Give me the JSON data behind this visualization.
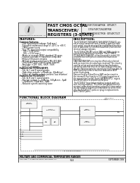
{
  "title_left": "FAST CMOS OCTAL\nTRANSCEIVER/\nREGISTERS (3-STATE)",
  "part_numbers_right": "IDT54/74FCT2652ATPGB · IDT54FCT\n          IDT54/74FCT2652BTPGB\nIDT54/74FCT2652CTPGB · IDT54FCT1CT",
  "logo_text": "Integrated Device Technology, Inc.",
  "features_title": "FEATURES:",
  "description_title": "DESCRIPTION:",
  "functional_title": "FUNCTIONAL BLOCK DIAGRAM",
  "footer_left": "MILITARY AND COMMERCIAL TEMPERATURE RANGES",
  "footer_center": "9-24",
  "footer_right": "SEPTEMBER 1999",
  "footer_company": "Copyright © Integrated Device Technology, Inc.",
  "bg_color": "#ffffff",
  "features_lines": [
    [
      "bold",
      "Common features:"
    ],
    [
      "normal",
      "  – Low input/output leakage (1µA max.)"
    ],
    [
      "normal",
      "  – Extended commercial range of -40°C to +85°C"
    ],
    [
      "normal",
      "  – CMOS power levels"
    ],
    [
      "normal",
      "  – True TTL input and output compatibility"
    ],
    [
      "normal",
      "    · VIH = 2.0V (min.)"
    ],
    [
      "normal",
      "    · VOL = 0.5V (max.)"
    ],
    [
      "normal",
      "  – Meets or exceeds JEDEC standard 18 specs"
    ],
    [
      "normal",
      "  – Product available in Industrial I-temp and"
    ],
    [
      "normal",
      "    Military Enhanced versions"
    ],
    [
      "normal",
      "  – Military product compliant to MIL-STD-883,"
    ],
    [
      "normal",
      "    Class B and JEDEC tested (upon request)"
    ],
    [
      "normal",
      "  – Available in DIP, SOIC, SSOP, TSOP,"
    ],
    [
      "normal",
      "    and LCC packages"
    ],
    [
      "bold",
      "Features for FCT2652AT/BT:"
    ],
    [
      "normal",
      "  – Std. A, C and D speed grades"
    ],
    [
      "normal",
      "  – High-drive outputs (−64mA typ., 64mA typ.)"
    ],
    [
      "normal",
      "  – Power off disable outputs prevent 'bus insertion'"
    ],
    [
      "bold",
      "Features for FCT2652CT:"
    ],
    [
      "normal",
      "  – Std. A, B and C speed grades"
    ],
    [
      "normal",
      "  – Resistor outputs  (−2mA typ., 100µA min., 5µA)"
    ],
    [
      "normal",
      "    (−4mA min., 50µA min., 8µA)"
    ],
    [
      "normal",
      "  – Reduced system switching noise"
    ]
  ],
  "desc_lines": [
    "The FCT2652/FCT2652AT/FCT2652BT/FCT2652CT con-",
    "sist of a bus transceiver with 3-state Q-type flip-flops",
    "and control circuits arranged for multiplexed transmis-",
    "sion of data directly from the B-bus/Out-Q to/from the",
    "internal storage registers.",
    "",
    "The FCT2652/2652AT utilize OAB and SBA signals to",
    "synchronize transceiver functions. The FCT2652/",
    "FCT2652AT/FCT2652BT utilize the enable control (G)",
    "and direction (DIR) pins to control the transceiver",
    "functions.",
    "",
    "SAB/SBA/OAB/OAP pins may be effectively selected",
    "with no more time or extra logic involved. The circuitry",
    "used for select and synchronization has the fastest",
    "operating path that insures no data skips/glitches dur-",
    "ing the transition between stored and real time data. A",
    "ROR input level selects real-time data and a WOR",
    "select clocks data.",
    "",
    "Data on the A or B-bus/Out or SAP can be stored in",
    "the internal 8 flip-flops by a CLK signal regardless of",
    "the appropriate control inputs (AP/APN GPIO), regard-",
    "less of the select to enable control pins.",
    "",
    "The FCT2652* have balanced drive outputs with cur-",
    "rent limiting resistors. This offers low ground bounce,",
    "minimal undershoot/overshoot output fall times reduc-",
    "ing the need for expensive termination or series filter-",
    "ing. The FCT2652CT parts are plug in replacements",
    "for FCT2652T parts."
  ]
}
